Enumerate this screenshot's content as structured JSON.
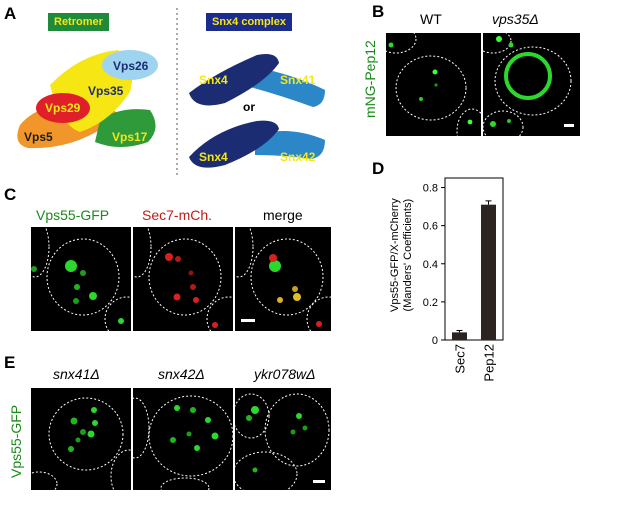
{
  "panel_letters": {
    "a": "A",
    "b": "B",
    "c": "C",
    "d": "D",
    "e": "E"
  },
  "panel_a": {
    "retromer_title": "Retromer",
    "snx4_title": "Snx4 complex",
    "subunits": {
      "vps26": "Vps26",
      "vps35": "Vps35",
      "vps29": "Vps29",
      "vps5": "Vps5",
      "vps17": "Vps17"
    },
    "snx4_complex": {
      "snx4_top": "Snx4",
      "snx41": "Snx41",
      "or": "or",
      "snx4_bottom": "Snx4",
      "snx42": "Snx42"
    },
    "colors": {
      "retromer_tag": "#1f8a3a",
      "snx4_tag": "#1c2c8c",
      "vps26": "#9fd4f0",
      "vps35": "#f5e614",
      "vps29": "#e02028",
      "vps5": "#f0962a",
      "vps17": "#2e9a3a",
      "snx4": "#1c2c72",
      "snx41": "#2b87c8",
      "snx42": "#2b87c8"
    }
  },
  "panel_b": {
    "col_wt": "WT",
    "col_mutant": "vps35Δ",
    "row_label": "mNG-Pep12"
  },
  "panel_c": {
    "col1": "Vps55-GFP",
    "col2": "Sec7-mCh.",
    "col3": "merge"
  },
  "panel_d": {
    "ylabel_line1": "Vps55-GFP/X-mCherry",
    "ylabel_line2": "(Manders' Coefficients)"
  },
  "chart_data": {
    "type": "bar",
    "categories": [
      "Sec7",
      "Pep12"
    ],
    "values": [
      0.04,
      0.71
    ],
    "errors": [
      0.01,
      0.02
    ],
    "ylim": [
      0,
      0.85
    ],
    "yticks": [
      "0",
      "0.2",
      "0.4",
      "0.6",
      "0.8"
    ],
    "ylabel": "Vps55-GFP/X-mCherry (Manders' Coefficients)",
    "bar_color": "#2b2420"
  },
  "panel_e": {
    "col1": "snx41Δ",
    "col2": "snx42Δ",
    "col3": "ykr078wΔ",
    "row_label": "Vps55-GFP"
  }
}
